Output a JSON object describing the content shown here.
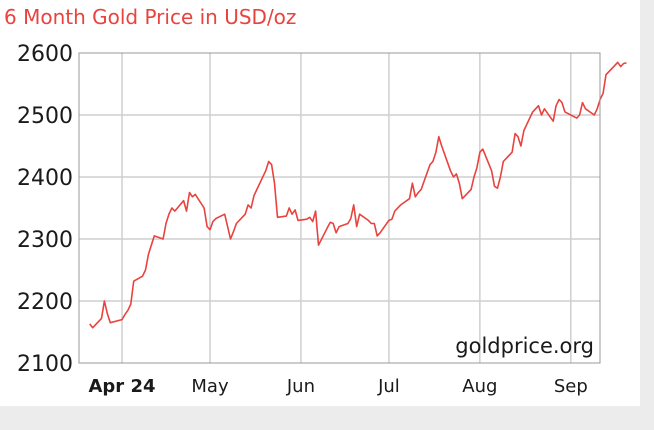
{
  "chart_data": {
    "type": "line",
    "title": "6 Month Gold Price in USD/oz",
    "watermark": "goldprice.org",
    "xlabel": "",
    "ylabel": "",
    "ylim": [
      2100,
      2600
    ],
    "yticks": [
      "2600",
      "2500",
      "2400",
      "2300",
      "2200",
      "2100"
    ],
    "xticks": [
      {
        "label": "Apr 24",
        "bold": true
      },
      {
        "label": "May",
        "bold": false
      },
      {
        "label": "Jun",
        "bold": false
      },
      {
        "label": "Jul",
        "bold": false
      },
      {
        "label": "Aug",
        "bold": false
      },
      {
        "label": "Sep",
        "bold": false
      }
    ],
    "grid": true,
    "line_color": "#e8433f",
    "title_color": "#e8433f",
    "series": [
      {
        "x": [
          "2024-03-21",
          "2024-03-22",
          "2024-03-25",
          "2024-03-26",
          "2024-03-27",
          "2024-03-28",
          "2024-04-01",
          "2024-04-02",
          "2024-04-03",
          "2024-04-04",
          "2024-04-05",
          "2024-04-08",
          "2024-04-09",
          "2024-04-10",
          "2024-04-11",
          "2024-04-12",
          "2024-04-15",
          "2024-04-16",
          "2024-04-17",
          "2024-04-18",
          "2024-04-19",
          "2024-04-22",
          "2024-04-23",
          "2024-04-24",
          "2024-04-25",
          "2024-04-26",
          "2024-04-29",
          "2024-04-30",
          "2024-05-01",
          "2024-05-02",
          "2024-05-03",
          "2024-05-06",
          "2024-05-07",
          "2024-05-08",
          "2024-05-09",
          "2024-05-10",
          "2024-05-13",
          "2024-05-14",
          "2024-05-15",
          "2024-05-16",
          "2024-05-17",
          "2024-05-20",
          "2024-05-21",
          "2024-05-22",
          "2024-05-23",
          "2024-05-24",
          "2024-05-27",
          "2024-05-28",
          "2024-05-29",
          "2024-05-30",
          "2024-05-31",
          "2024-06-03",
          "2024-06-04",
          "2024-06-05",
          "2024-06-06",
          "2024-06-07",
          "2024-06-10",
          "2024-06-11",
          "2024-06-12",
          "2024-06-13",
          "2024-06-14",
          "2024-06-17",
          "2024-06-18",
          "2024-06-19",
          "2024-06-20",
          "2024-06-21",
          "2024-06-24",
          "2024-06-25",
          "2024-06-26",
          "2024-06-27",
          "2024-06-28",
          "2024-07-01",
          "2024-07-02",
          "2024-07-03",
          "2024-07-05",
          "2024-07-08",
          "2024-07-09",
          "2024-07-10",
          "2024-07-11",
          "2024-07-12",
          "2024-07-15",
          "2024-07-16",
          "2024-07-17",
          "2024-07-18",
          "2024-07-19",
          "2024-07-22",
          "2024-07-23",
          "2024-07-24",
          "2024-07-25",
          "2024-07-26",
          "2024-07-29",
          "2024-07-30",
          "2024-07-31",
          "2024-08-01",
          "2024-08-02",
          "2024-08-05",
          "2024-08-06",
          "2024-08-07",
          "2024-08-08",
          "2024-08-09",
          "2024-08-12",
          "2024-08-13",
          "2024-08-14",
          "2024-08-15",
          "2024-08-16",
          "2024-08-19",
          "2024-08-20",
          "2024-08-21",
          "2024-08-22",
          "2024-08-23",
          "2024-08-26",
          "2024-08-27",
          "2024-08-28",
          "2024-08-29",
          "2024-08-30",
          "2024-09-03",
          "2024-09-04",
          "2024-09-05",
          "2024-09-06",
          "2024-09-09",
          "2024-09-10",
          "2024-09-11",
          "2024-09-12",
          "2024-09-13",
          "2024-09-16",
          "2024-09-17",
          "2024-09-18",
          "2024-09-19",
          "2024-09-20"
        ],
        "y": [
          2163,
          2157,
          2172,
          2200,
          2180,
          2165,
          2170,
          2178,
          2185,
          2195,
          2232,
          2240,
          2250,
          2275,
          2290,
          2305,
          2300,
          2325,
          2340,
          2350,
          2345,
          2362,
          2345,
          2375,
          2368,
          2372,
          2350,
          2320,
          2315,
          2328,
          2333,
          2340,
          2320,
          2300,
          2312,
          2325,
          2340,
          2355,
          2350,
          2370,
          2380,
          2410,
          2425,
          2420,
          2390,
          2335,
          2337,
          2350,
          2340,
          2347,
          2330,
          2332,
          2335,
          2328,
          2345,
          2290,
          2318,
          2327,
          2325,
          2310,
          2320,
          2325,
          2333,
          2355,
          2320,
          2340,
          2330,
          2325,
          2325,
          2305,
          2310,
          2330,
          2332,
          2345,
          2355,
          2365,
          2390,
          2368,
          2375,
          2380,
          2420,
          2425,
          2440,
          2465,
          2450,
          2410,
          2400,
          2405,
          2390,
          2365,
          2380,
          2400,
          2415,
          2440,
          2445,
          2410,
          2385,
          2382,
          2400,
          2425,
          2440,
          2470,
          2465,
          2450,
          2475,
          2505,
          2510,
          2515,
          2500,
          2510,
          2490,
          2515,
          2525,
          2520,
          2505,
          2495,
          2500,
          2520,
          2510,
          2500,
          2510,
          2525,
          2535,
          2565,
          2580,
          2585,
          2578,
          2583,
          2584
        ]
      }
    ]
  }
}
